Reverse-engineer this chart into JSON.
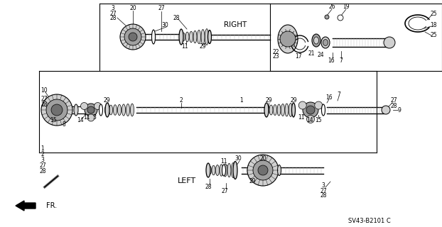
{
  "bg_color": "#ffffff",
  "fig_width": 6.22,
  "fig_height": 3.2,
  "dpi": 100,
  "diagram_code": "SV43-B2101 C",
  "right_label": "RIGHT",
  "left_label": "LEFT",
  "fr_label": "FR.",
  "gray_light": "#d0d0d0",
  "gray_mid": "#a0a0a0",
  "gray_dark": "#707070",
  "black": "#000000",
  "white": "#ffffff"
}
